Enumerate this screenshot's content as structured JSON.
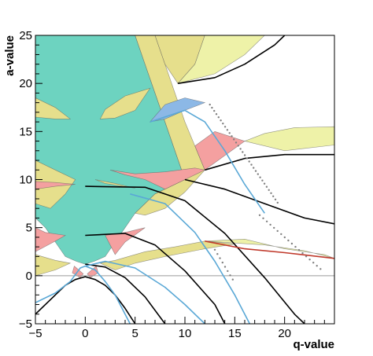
{
  "chart_data": {
    "type": "area",
    "xlabel": "q-value",
    "ylabel": "a-value",
    "xlim": [
      -5,
      25
    ],
    "ylim": [
      -5,
      25
    ],
    "x_ticks": [
      -5,
      0,
      5,
      10,
      15,
      20
    ],
    "y_ticks": [
      -5,
      0,
      5,
      10,
      15,
      20,
      25
    ],
    "x_tick_labels": [
      "−5",
      "0",
      "5",
      "10",
      "15",
      "20"
    ],
    "y_tick_labels": [
      "−5",
      "0",
      "5",
      "10",
      "15",
      "20",
      "25"
    ],
    "grid": false,
    "reference_line_y": 0,
    "colors": {
      "teal": "#6dd3c0",
      "yellow": "#e6df8c",
      "pink": "#f4a0a0",
      "blue": "#8cb8e6",
      "lightyellow": "#eef2a8",
      "curve_dark": "#000000",
      "curve_blue": "#5aa8d6",
      "curve_red": "#c0392b",
      "dots": "#808080"
    },
    "regions": [
      {
        "color": "teal",
        "points": [
          [
            -5,
            25
          ],
          [
            0,
            25
          ],
          [
            5,
            25
          ],
          [
            6,
            22
          ],
          [
            7,
            19
          ],
          [
            8,
            16
          ],
          [
            10,
            10
          ],
          [
            7,
            8.5
          ],
          [
            6,
            7.5
          ],
          [
            5,
            6.5
          ],
          [
            4,
            5
          ],
          [
            3,
            3.5
          ],
          [
            2,
            2
          ],
          [
            0.9,
            1.5
          ],
          [
            0,
            1.2
          ],
          [
            -0.9,
            1.5
          ],
          [
            -2,
            2
          ],
          [
            -3,
            3.5
          ],
          [
            -4,
            5
          ],
          [
            -5,
            6
          ]
        ]
      },
      {
        "color": "yellow",
        "points": [
          [
            5,
            25
          ],
          [
            6,
            22
          ],
          [
            7,
            19
          ],
          [
            8,
            16
          ],
          [
            10,
            10
          ],
          [
            7,
            8.5
          ],
          [
            6,
            7.5
          ],
          [
            5,
            6.5
          ],
          [
            6,
            6.3
          ],
          [
            8,
            7
          ],
          [
            10,
            8.7
          ],
          [
            12,
            11
          ],
          [
            11,
            13.5
          ],
          [
            10,
            16
          ],
          [
            9,
            19
          ],
          [
            8,
            22
          ],
          [
            7,
            25
          ]
        ]
      },
      {
        "color": "yellow",
        "points": [
          [
            7,
            25
          ],
          [
            8,
            22
          ],
          [
            9.3,
            20
          ],
          [
            11,
            22
          ],
          [
            12,
            25
          ]
        ]
      },
      {
        "color": "lightyellow",
        "points": [
          [
            12,
            25
          ],
          [
            11,
            22
          ],
          [
            9.3,
            20
          ],
          [
            13,
            21
          ],
          [
            16,
            23
          ],
          [
            18,
            25
          ]
        ]
      },
      {
        "color": "pink",
        "points": [
          [
            11,
            13.5
          ],
          [
            12,
            11
          ],
          [
            14,
            12.5
          ],
          [
            16,
            14
          ],
          [
            13,
            15
          ]
        ]
      },
      {
        "color": "blue",
        "points": [
          [
            6.5,
            16
          ],
          [
            8,
            16.3
          ],
          [
            10,
            17.2
          ],
          [
            12,
            18
          ],
          [
            10,
            18.5
          ],
          [
            8,
            17.8
          ]
        ]
      },
      {
        "color": "pink",
        "points": [
          [
            2.5,
            11
          ],
          [
            4,
            10.5
          ],
          [
            6,
            10
          ],
          [
            7,
            9.5
          ],
          [
            8,
            9
          ],
          [
            10,
            10
          ],
          [
            12,
            11
          ],
          [
            11,
            11.2
          ],
          [
            8,
            10.8
          ],
          [
            5,
            10.6
          ]
        ]
      },
      {
        "color": "yellow",
        "points": [
          [
            -5,
            12
          ],
          [
            -3,
            11
          ],
          [
            -1,
            10
          ],
          [
            -2,
            8.5
          ],
          [
            -3.5,
            7
          ],
          [
            -5,
            7.5
          ]
        ]
      },
      {
        "color": "pink",
        "points": [
          [
            -5,
            9
          ],
          [
            -3,
            9.3
          ],
          [
            -1,
            9.5
          ],
          [
            -3,
            9.7
          ],
          [
            -5,
            9.8
          ]
        ]
      },
      {
        "color": "yellow",
        "points": [
          [
            -5,
            16.5
          ],
          [
            -3,
            16.3
          ],
          [
            -1.5,
            16.3
          ],
          [
            -3,
            17.5
          ],
          [
            -5,
            18.5
          ]
        ]
      },
      {
        "color": "yellow",
        "points": [
          [
            1.5,
            16.3
          ],
          [
            3,
            16.4
          ],
          [
            5,
            17.2
          ],
          [
            6.5,
            19.5
          ],
          [
            4,
            18.7
          ],
          [
            2,
            17.3
          ]
        ]
      },
      {
        "color": "yellow",
        "points": [
          [
            1,
            10
          ],
          [
            3,
            9.6
          ],
          [
            5,
            9.1
          ],
          [
            2,
            9.6
          ]
        ]
      },
      {
        "color": "pink",
        "points": [
          [
            -5,
            5
          ],
          [
            -4,
            4.5
          ],
          [
            -2,
            4.2
          ],
          [
            -3,
            3.6
          ],
          [
            -5,
            2.5
          ]
        ]
      },
      {
        "color": "pink",
        "points": [
          [
            2,
            4.2
          ],
          [
            4,
            4.5
          ],
          [
            6,
            5
          ],
          [
            4,
            3.5
          ],
          [
            3,
            2.2
          ]
        ]
      },
      {
        "color": "yellow",
        "points": [
          [
            -5,
            2.2
          ],
          [
            -3,
            1.6
          ],
          [
            -1.5,
            1.3
          ],
          [
            -3,
            0.6
          ],
          [
            -5,
            0
          ]
        ]
      },
      {
        "color": "yellow",
        "points": [
          [
            1.5,
            1.3
          ],
          [
            3,
            1.6
          ],
          [
            6,
            2.5
          ],
          [
            9,
            3
          ],
          [
            12,
            3.6
          ],
          [
            15,
            3.3
          ],
          [
            12,
            2.8
          ],
          [
            8,
            2
          ],
          [
            5,
            1.3
          ],
          [
            3,
            0.6
          ]
        ]
      },
      {
        "color": "lightyellow",
        "points": [
          [
            12,
            3.6
          ],
          [
            16,
            3.8
          ],
          [
            20,
            2.8
          ],
          [
            24,
            2.2
          ],
          [
            25,
            1.8
          ],
          [
            22,
            2.6
          ],
          [
            18,
            3.2
          ]
        ]
      },
      {
        "color": "lightyellow",
        "points": [
          [
            16,
            14
          ],
          [
            20,
            13
          ],
          [
            25,
            13.6
          ],
          [
            25,
            15.5
          ],
          [
            21,
            15.4
          ],
          [
            18,
            14.8
          ]
        ]
      },
      {
        "color": "pink",
        "points": [
          [
            -1.1,
            1
          ],
          [
            -0.2,
            0.2
          ],
          [
            -0.5,
            -0.2
          ],
          [
            -1.3,
            0.3
          ]
        ]
      },
      {
        "color": "pink",
        "points": [
          [
            1.1,
            1
          ],
          [
            0.2,
            0.2
          ],
          [
            0.5,
            -0.2
          ],
          [
            1.3,
            0.3
          ]
        ]
      }
    ],
    "curves": [
      {
        "color": "curve_dark",
        "points": [
          [
            -5,
            -4
          ],
          [
            -3,
            -2
          ],
          [
            -2,
            -1
          ],
          [
            -1,
            -0.4
          ],
          [
            0,
            -0.1
          ],
          [
            1,
            -0.4
          ],
          [
            2,
            -1
          ],
          [
            3,
            -2
          ],
          [
            4,
            -3.4
          ],
          [
            5,
            -5
          ]
        ]
      },
      {
        "color": "curve_dark",
        "points": [
          [
            0,
            1.2
          ],
          [
            2,
            0.9
          ],
          [
            4,
            -0.2
          ],
          [
            6,
            -2.2
          ],
          [
            8,
            -5
          ]
        ]
      },
      {
        "color": "curve_dark",
        "points": [
          [
            0,
            4.2
          ],
          [
            4,
            4.4
          ],
          [
            7,
            3.2
          ],
          [
            10,
            0.5
          ],
          [
            13,
            -3
          ],
          [
            14,
            -5
          ]
        ]
      },
      {
        "color": "curve_dark",
        "points": [
          [
            0,
            9.3
          ],
          [
            6,
            9.2
          ],
          [
            10,
            7.8
          ],
          [
            14,
            4.4
          ],
          [
            18,
            -0.2
          ],
          [
            21,
            -4
          ],
          [
            22,
            -5
          ]
        ]
      },
      {
        "color": "curve_dark",
        "points": [
          [
            10,
            10
          ],
          [
            14,
            9
          ],
          [
            18,
            7.5
          ],
          [
            22,
            6
          ],
          [
            25,
            5.4
          ]
        ]
      },
      {
        "color": "curve_dark",
        "points": [
          [
            12,
            11
          ],
          [
            16,
            12.2
          ],
          [
            20,
            12.6
          ],
          [
            25,
            12.6
          ]
        ]
      },
      {
        "color": "curve_dark",
        "points": [
          [
            9.3,
            20
          ],
          [
            13,
            20.6
          ],
          [
            16,
            22
          ],
          [
            19,
            24
          ],
          [
            20,
            25
          ]
        ]
      },
      {
        "color": "curve_red",
        "points": [
          [
            12,
            3.6
          ],
          [
            16,
            2.8
          ],
          [
            20,
            2.4
          ],
          [
            25,
            1.8
          ]
        ]
      },
      {
        "color": "curve_blue",
        "points": [
          [
            -5,
            -2.8
          ],
          [
            -3,
            -1.8
          ],
          [
            -1.5,
            -0.6
          ],
          [
            -0.5,
            0.8
          ],
          [
            0,
            1
          ]
        ]
      },
      {
        "color": "curve_blue",
        "points": [
          [
            0,
            1
          ],
          [
            1,
            0.6
          ],
          [
            2,
            -0.6
          ],
          [
            3,
            -2
          ],
          [
            4.5,
            -5
          ]
        ]
      },
      {
        "color": "curve_blue",
        "points": [
          [
            0,
            1
          ],
          [
            2,
            1.5
          ],
          [
            5,
            0.8
          ],
          [
            8,
            -1.2
          ],
          [
            10,
            -3
          ],
          [
            12,
            -5
          ]
        ]
      },
      {
        "color": "curve_blue",
        "points": [
          [
            4.5,
            8.5
          ],
          [
            8,
            7.5
          ],
          [
            11,
            4.5
          ],
          [
            13,
            1.5
          ],
          [
            15,
            -2
          ],
          [
            16.5,
            -5
          ]
        ]
      },
      {
        "color": "curve_blue",
        "points": [
          [
            6.5,
            16
          ],
          [
            10,
            17.2
          ],
          [
            12,
            16
          ],
          [
            14,
            13
          ],
          [
            16,
            9.5
          ],
          [
            18,
            6.5
          ]
        ]
      }
    ],
    "dot_segments": [
      {
        "color": "dots",
        "from": [
          12.5,
          17.8
        ],
        "to": [
          19.3,
          7.6
        ],
        "count": 32
      },
      {
        "color": "dots",
        "from": [
          17.5,
          6.3
        ],
        "to": [
          23.6,
          0.7
        ],
        "count": 18
      },
      {
        "color": "dots",
        "from": [
          13,
          2.7
        ],
        "to": [
          14.8,
          -0.4
        ],
        "count": 8
      }
    ]
  }
}
